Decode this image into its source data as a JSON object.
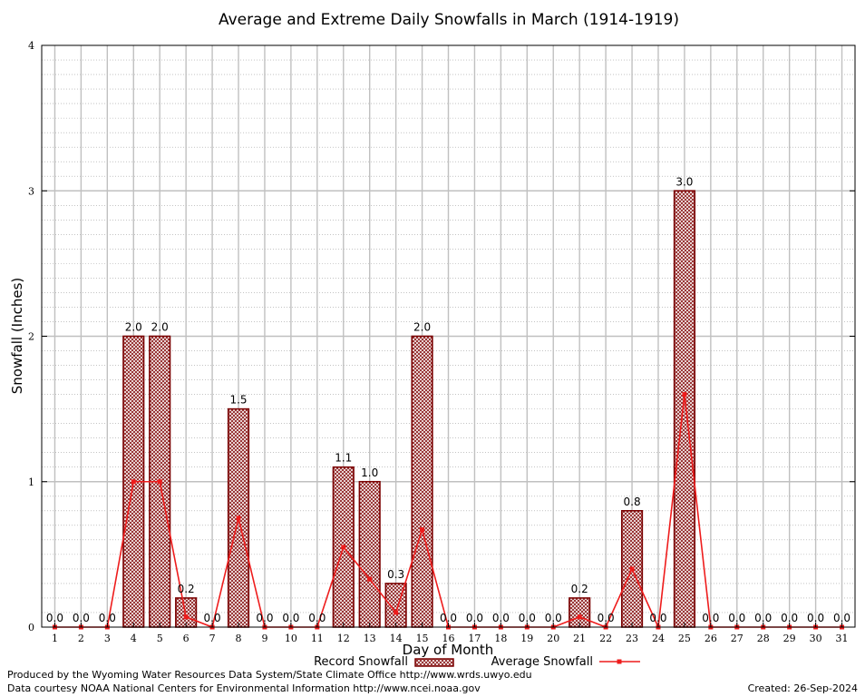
{
  "chart_data": {
    "type": "bar",
    "title": "Average and Extreme Daily Snowfalls in March (1914-1919)",
    "xlabel": "Day of Month",
    "ylabel": "Snowfall (Inches)",
    "ylim": [
      0,
      4
    ],
    "yticks": [
      "0",
      "1",
      "2",
      "3",
      "4"
    ],
    "categories": [
      "1",
      "2",
      "3",
      "4",
      "5",
      "6",
      "7",
      "8",
      "9",
      "10",
      "11",
      "12",
      "13",
      "14",
      "15",
      "16",
      "17",
      "18",
      "19",
      "20",
      "21",
      "22",
      "23",
      "24",
      "25",
      "26",
      "27",
      "28",
      "29",
      "30",
      "31"
    ],
    "series": [
      {
        "name": "Record Snowfall",
        "type": "bar",
        "values": [
          0.0,
          0.0,
          0.0,
          2.0,
          2.0,
          0.2,
          0.0,
          1.5,
          0.0,
          0.0,
          0.0,
          1.1,
          1.0,
          0.3,
          2.0,
          0.0,
          0.0,
          0.0,
          0.0,
          0.0,
          0.2,
          0.0,
          0.8,
          0.0,
          3.0,
          0.0,
          0.0,
          0.0,
          0.0,
          0.0,
          0.0
        ],
        "labels": [
          "0.0",
          "0.0",
          "0.0",
          "2.0",
          "2.0",
          "0.2",
          "0.0",
          "1.5",
          "0.0",
          "0.0",
          "0.0",
          "1.1",
          "1.0",
          "0.3",
          "2.0",
          "0.0",
          "0.0",
          "0.0",
          "0.0",
          "0.0",
          "0.2",
          "0.0",
          "0.8",
          "0.0",
          "3.0",
          "0.0",
          "0.0",
          "0.0",
          "0.0",
          "0.0",
          "0.0"
        ]
      },
      {
        "name": "Average Snowfall",
        "type": "line",
        "values": [
          0.0,
          0.0,
          0.0,
          1.0,
          1.0,
          0.07,
          0.0,
          0.75,
          0.0,
          0.0,
          0.0,
          0.55,
          0.33,
          0.1,
          0.67,
          0.0,
          0.0,
          0.0,
          0.0,
          0.0,
          0.07,
          0.0,
          0.4,
          0.0,
          1.6,
          0.0,
          0.0,
          0.0,
          0.0,
          0.0,
          0.0
        ]
      }
    ],
    "grid": true,
    "legend_position": "bottom",
    "colors": {
      "bar_outline": "#7a0000",
      "bar_fill": "#c9a3a3",
      "line": "#ee1c1c",
      "grid": "#c0c0c0",
      "minor_grid": "#a0a0a0"
    }
  },
  "footer": {
    "produced_by": "Produced by the Wyoming Water Resources Data System/State Climate Office http://www.wrds.uwyo.edu",
    "data_courtesy": "Data courtesy NOAA National Centers for Environmental Information http://www.ncei.noaa.gov",
    "created": "Created: 26-Sep-2024"
  }
}
